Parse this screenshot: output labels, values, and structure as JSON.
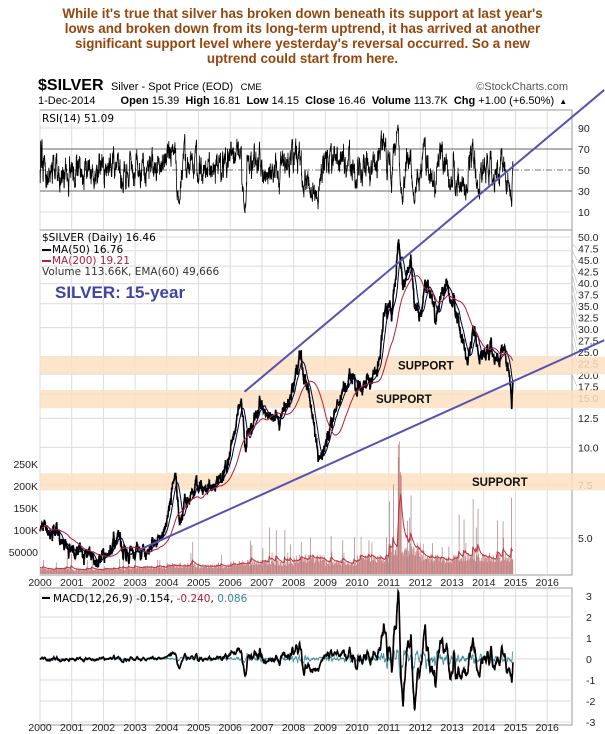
{
  "annotation_text": [
    "While it's true that silver has broken down beneath its support at last year's",
    "lows and broken down from its long-term uptrend, it has arrived at another",
    "significant support level where yesterday's reversal occurred. So a new",
    "uptrend could start from here."
  ],
  "header": {
    "symbol": "$SILVER",
    "description": "Silver - Spot Price (EOD)",
    "exchange": "CME",
    "source": "©StockCharts.com",
    "date": "1-Dec-2014",
    "open_label": "Open",
    "open": "15.39",
    "high_label": "High",
    "high": "16.81",
    "low_label": "Low",
    "low": "14.15",
    "close_label": "Close",
    "close": "16.46",
    "volume_label": "Volume",
    "volume": "113.7K",
    "chg_label": "Chg",
    "chg": "+1.00 (+6.50%)",
    "chg_icon": "up-triangle-icon"
  },
  "colors": {
    "annotation": "#94460c",
    "trendline": "#5552b0",
    "support_band": "#fbe1c2",
    "price": "#000000",
    "ma50": "#000033",
    "ma200": "#b0203c",
    "volume": "#c98585",
    "macd": "#000000",
    "macd_signal": "#b0203c",
    "macd_hist": "#3a8a9a"
  },
  "chart_data": [
    {
      "type": "line",
      "panel": "rsi",
      "title": "RSI(14) 51.09",
      "ylim": [
        0,
        100
      ],
      "yticks": [
        "90",
        "70",
        "50",
        "30",
        "10"
      ],
      "reference_lines": [
        70,
        50,
        30
      ],
      "last_value": 51.09
    },
    {
      "type": "line",
      "panel": "price",
      "title": "SILVER: 15-year",
      "scale": "log",
      "ylim": [
        4.0,
        52
      ],
      "legend": [
        "$SILVER (Daily) 16.46",
        "MA(50) 16.76",
        "MA(200) 19.21",
        "Volume 113.66K, EMA(60) 49,666"
      ],
      "yticks": [
        "50.0",
        "47.5",
        "45.0",
        "42.5",
        "40.0",
        "37.5",
        "35.0",
        "32.5",
        "30.0",
        "27.5",
        "25.0",
        "22.5",
        "20.0",
        "17.5",
        "15.0",
        "12.5",
        "10.0",
        "7.5",
        "5.0"
      ],
      "ytick_values": [
        50,
        47.5,
        45,
        42.5,
        40,
        37.5,
        35,
        32.5,
        30,
        27.5,
        25,
        22.5,
        20,
        17.5,
        15,
        12.5,
        10,
        7.5,
        5
      ],
      "volume_yticks": [
        "250K",
        "200K",
        "150K",
        "100K",
        "50000"
      ],
      "volume_ytick_values": [
        250000,
        200000,
        150000,
        100000,
        50000
      ],
      "price_keypoints": [
        [
          2000,
          5.3
        ],
        [
          2000.5,
          5.0
        ],
        [
          2001,
          4.6
        ],
        [
          2001.4,
          4.4
        ],
        [
          2001.9,
          4.15
        ],
        [
          2002.4,
          4.9
        ],
        [
          2002.8,
          4.5
        ],
        [
          2003.3,
          4.4
        ],
        [
          2003.9,
          5.2
        ],
        [
          2004.28,
          8.0
        ],
        [
          2004.4,
          5.8
        ],
        [
          2004.9,
          7.3
        ],
        [
          2005.3,
          7.1
        ],
        [
          2005.9,
          8.8
        ],
        [
          2006.35,
          14.5
        ],
        [
          2006.45,
          10.5
        ],
        [
          2006.9,
          13.5
        ],
        [
          2007.6,
          12.0
        ],
        [
          2007.9,
          14.5
        ],
        [
          2008.18,
          20.0
        ],
        [
          2008.6,
          13.0
        ],
        [
          2008.83,
          9.0
        ],
        [
          2009.4,
          14.5
        ],
        [
          2009.9,
          17.5
        ],
        [
          2010.1,
          15.5
        ],
        [
          2010.6,
          18.0
        ],
        [
          2010.9,
          29
        ],
        [
          2011.1,
          28
        ],
        [
          2011.33,
          48
        ],
        [
          2011.45,
          34
        ],
        [
          2011.7,
          42
        ],
        [
          2011.8,
          30
        ],
        [
          2012.0,
          28
        ],
        [
          2012.15,
          35
        ],
        [
          2012.5,
          27
        ],
        [
          2012.75,
          34
        ],
        [
          2013.05,
          31
        ],
        [
          2013.3,
          23
        ],
        [
          2013.5,
          19
        ],
        [
          2013.65,
          24
        ],
        [
          2013.9,
          19.5
        ],
        [
          2014.2,
          21.5
        ],
        [
          2014.5,
          19.5
        ],
        [
          2014.6,
          21
        ],
        [
          2014.8,
          17
        ],
        [
          2014.88,
          14.2
        ],
        [
          2014.92,
          16.46
        ]
      ],
      "volume_levels_k": {
        "2000": 12,
        "2001": 10,
        "2002": 12,
        "2003": 15,
        "2004": 20,
        "2005": 18,
        "2006": 25,
        "2007": 25,
        "2008": 35,
        "2009": 25,
        "2010": 35,
        "2011": 55,
        "2012": 35,
        "2013": 38,
        "2014": 38
      },
      "support_zones": [
        {
          "label": "SUPPORT",
          "low": 17.5,
          "high": 20.0
        },
        {
          "label": "SUPPORT",
          "low": 13.5,
          "high": 15.5
        },
        {
          "label": "SUPPORT",
          "low": 7.2,
          "high": 8.2
        }
      ],
      "trendlines": [
        {
          "name": "lower-uptrend",
          "from": [
            2003.1,
            4.55
          ],
          "to": [
            2017.8,
            22.7
          ]
        },
        {
          "name": "upper-channel",
          "from": [
            2006.45,
            15.3
          ],
          "to": [
            2017.8,
            154
          ]
        }
      ]
    },
    {
      "type": "line",
      "panel": "macd",
      "title": "MACD(12,26,9)",
      "values_text": [
        "-0.154",
        "-0.240",
        "0.086"
      ],
      "ylim": [
        -3.2,
        3.2
      ],
      "yticks": [
        "3",
        "2",
        "1",
        "0",
        "-1",
        "-2",
        "-3"
      ],
      "ytick_values": [
        3,
        2,
        1,
        0,
        -1,
        -2,
        -3
      ]
    }
  ],
  "x_axis": {
    "years": [
      "2000",
      "2001",
      "2002",
      "2003",
      "2004",
      "2005",
      "2006",
      "2007",
      "2008",
      "2009",
      "2010",
      "2011",
      "2012",
      "2013",
      "2014",
      "2015",
      "2016"
    ]
  }
}
